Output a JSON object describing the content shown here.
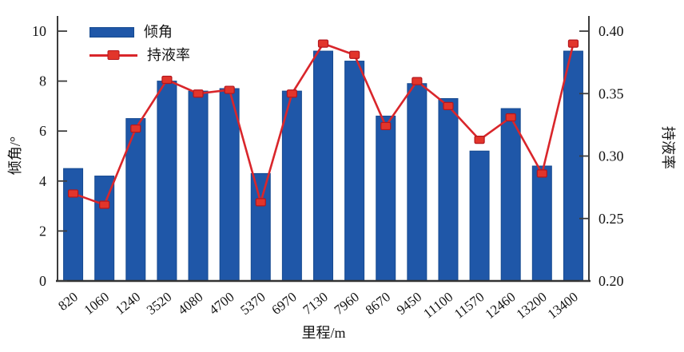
{
  "chart": {
    "legend": {
      "bar_label": "倾角",
      "line_label": "持液率"
    },
    "axes": {
      "left_title": "倾角/°",
      "right_title": "持液率",
      "x_title": "里程/m",
      "left_ticks": [
        0,
        2,
        4,
        6,
        8,
        10
      ],
      "right_tick_labels": [
        "0.20",
        "0.25",
        "0.30",
        "0.35",
        "0.40"
      ]
    },
    "colors": {
      "bar": "#1f57a8",
      "bar_edge": "#164a90",
      "line": "#d9262b",
      "marker_fill": "#e2352b",
      "marker_edge": "#b5161d",
      "axis": "#3c3c3c"
    }
  },
  "chart_data": {
    "type": "bar+line",
    "title": "",
    "xlabel": "里程/m",
    "ylabel_left": "倾角/°",
    "ylabel_right": "持液率",
    "ylim_left": [
      0,
      10
    ],
    "ylim_right": [
      0.2,
      0.4
    ],
    "grid": false,
    "legend_position": "top-left",
    "categories": [
      "820",
      "1060",
      "1240",
      "3520",
      "4080",
      "4700",
      "5370",
      "6970",
      "7130",
      "7960",
      "8670",
      "9450",
      "11100",
      "11570",
      "12460",
      "13200",
      "13400"
    ],
    "series": [
      {
        "name": "倾角",
        "type": "bar",
        "axis": "left",
        "values": [
          4.5,
          4.2,
          6.5,
          8.0,
          7.6,
          7.7,
          4.3,
          7.6,
          9.2,
          8.8,
          6.6,
          7.9,
          7.3,
          5.2,
          6.9,
          4.6,
          9.2
        ]
      },
      {
        "name": "持液率",
        "type": "line",
        "axis": "right",
        "values": [
          0.27,
          0.261,
          0.322,
          0.361,
          0.35,
          0.353,
          0.263,
          0.35,
          0.39,
          0.381,
          0.324,
          0.36,
          0.34,
          0.313,
          0.331,
          0.286,
          0.39
        ]
      }
    ]
  }
}
